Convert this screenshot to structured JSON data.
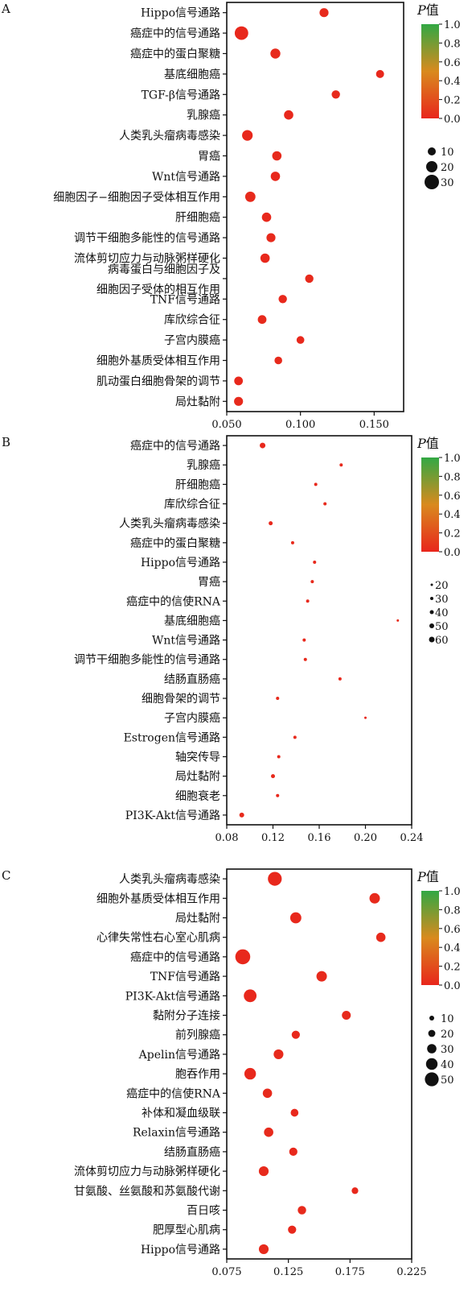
{
  "legend_title": "P值",
  "chart_data": [
    {
      "panel": "A",
      "type": "scatter",
      "categories": [
        "Hippo信号通路",
        "癌症中的信号通路",
        "癌症中的蛋白聚糖",
        "基底细胞癌",
        "TGF-β信号通路",
        "乳腺癌",
        "人类乳头瘤病毒感染",
        "胃癌",
        "Wnt信号通路",
        "细胞因子−细胞因子受体相互作用",
        "肝细胞癌",
        "调节干细胞多能性的信号通路",
        "流体剪切应力与动脉粥样硬化",
        "病毒蛋白与细胞因子及细胞因子受体的相互作用",
        "TNF信号通路",
        "库欣综合征",
        "子宫内膜癌",
        "细胞外基质受体相互作用",
        "肌动蛋白细胞骨架的调节",
        "局灶黏附"
      ],
      "x": [
        0.116,
        0.06,
        0.083,
        0.154,
        0.124,
        0.092,
        0.064,
        0.084,
        0.083,
        0.066,
        0.077,
        0.08,
        0.076,
        0.106,
        0.088,
        0.074,
        0.1,
        0.085,
        0.058,
        0.058
      ],
      "sizes": [
        13,
        27,
        16,
        10,
        11,
        14,
        18,
        14,
        14,
        17,
        14,
        13,
        14,
        11,
        11,
        12,
        9,
        9,
        12,
        13
      ],
      "p_values": [
        0.02,
        0.01,
        0.02,
        0.01,
        0.02,
        0.01,
        0.01,
        0.02,
        0.01,
        0.02,
        0.01,
        0.02,
        0.01,
        0.02,
        0.01,
        0.02,
        0.01,
        0.02,
        0.01,
        0.02
      ],
      "xlim": [
        0.05,
        0.17
      ],
      "x_ticks": [
        0.05,
        0.1,
        0.15
      ],
      "x_tick_labels": [
        "0.050",
        "0.100",
        "0.150"
      ],
      "size_legend": [
        10,
        20,
        30
      ],
      "color_scale": {
        "min": 0.0,
        "max": 1.0,
        "ticks": [
          "0.0",
          "0.2",
          "0.4",
          "0.6",
          "0.8",
          "1.0"
        ],
        "colors": [
          "#e8261c",
          "#d98a1e",
          "#32a844"
        ]
      }
    },
    {
      "panel": "B",
      "type": "scatter",
      "categories": [
        "癌症中的信号通路",
        "乳腺癌",
        "肝细胞癌",
        "库欣综合征",
        "人类乳头瘤病毒感染",
        "癌症中的蛋白聚糖",
        "Hippo信号通路",
        "胃癌",
        "癌症中的信使RNA",
        "基底细胞癌",
        "Wnt信号通路",
        "调节干细胞多能性的信号通路",
        "结肠直肠癌",
        "细胞骨架的调节",
        "子宫内膜癌",
        "Estrogen信号通路",
        "轴突传导",
        "局灶黏附",
        "细胞衰老",
        "PI3K-Akt信号通路"
      ],
      "x": [
        0.111,
        0.179,
        0.157,
        0.165,
        0.118,
        0.137,
        0.156,
        0.154,
        0.15,
        0.228,
        0.147,
        0.148,
        0.178,
        0.124,
        0.2,
        0.139,
        0.125,
        0.12,
        0.124,
        0.093
      ],
      "sizes": [
        60,
        30,
        30,
        30,
        40,
        30,
        30,
        30,
        30,
        20,
        30,
        30,
        30,
        30,
        20,
        30,
        30,
        40,
        30,
        50
      ],
      "p_values": [
        0.01,
        0.02,
        0.01,
        0.02,
        0.01,
        0.02,
        0.01,
        0.02,
        0.01,
        0.02,
        0.01,
        0.02,
        0.01,
        0.02,
        0.01,
        0.02,
        0.01,
        0.02,
        0.01,
        0.02
      ],
      "xlim": [
        0.08,
        0.24
      ],
      "x_ticks": [
        0.08,
        0.12,
        0.16,
        0.2,
        0.24
      ],
      "x_tick_labels": [
        "0.08",
        "0.12",
        "0.16",
        "0.20",
        "0.24"
      ],
      "size_legend": [
        20,
        30,
        40,
        50,
        60
      ],
      "color_scale": {
        "min": 0.0,
        "max": 1.0,
        "ticks": [
          "0.0",
          "0.2",
          "0.4",
          "0.6",
          "0.8",
          "1.0"
        ],
        "colors": [
          "#e8261c",
          "#d98a1e",
          "#32a844"
        ]
      }
    },
    {
      "panel": "C",
      "type": "scatter",
      "categories": [
        "人类乳头瘤病毒感染",
        "细胞外基质受体相互作用",
        "局灶黏附",
        "心律失常性右心室心肌病",
        "癌症中的信号通路",
        "TNF信号通路",
        "PI3K-Akt信号通路",
        "黏附分子连接",
        "前列腺癌",
        "Apelin信号通路",
        "胞吞作用",
        "癌症中的信使RNA",
        "补体和凝血级联",
        "Relaxin信号通路",
        "结肠直肠癌",
        "流体剪切应力与动脉粥样硬化",
        "甘氨酸、丝氨酸和苏氨酸代谢",
        "百日咳",
        "肥厚型心肌病",
        "Hippo信号通路"
      ],
      "x": [
        0.114,
        0.195,
        0.131,
        0.2,
        0.088,
        0.152,
        0.094,
        0.172,
        0.131,
        0.117,
        0.094,
        0.108,
        0.13,
        0.109,
        0.129,
        0.105,
        0.179,
        0.136,
        0.128,
        0.105
      ],
      "sizes": [
        50,
        35,
        38,
        30,
        55,
        35,
        45,
        28,
        25,
        32,
        40,
        30,
        23,
        30,
        25,
        32,
        18,
        26,
        25,
        32
      ],
      "p_values": [
        0.01,
        0.02,
        0.01,
        0.02,
        0.01,
        0.02,
        0.01,
        0.02,
        0.01,
        0.02,
        0.01,
        0.02,
        0.01,
        0.02,
        0.01,
        0.02,
        0.01,
        0.02,
        0.01,
        0.02
      ],
      "xlim": [
        0.075,
        0.225
      ],
      "x_ticks": [
        0.075,
        0.125,
        0.175,
        0.225
      ],
      "x_tick_labels": [
        "0.075",
        "0.125",
        "0.175",
        "0.225"
      ],
      "size_legend": [
        10,
        20,
        30,
        40,
        50
      ],
      "color_scale": {
        "min": 0.0,
        "max": 1.0,
        "ticks": [
          "0.0",
          "0.2",
          "0.4",
          "0.6",
          "0.8",
          "1.0"
        ],
        "colors": [
          "#e8261c",
          "#d98a1e",
          "#32a844"
        ]
      }
    }
  ]
}
